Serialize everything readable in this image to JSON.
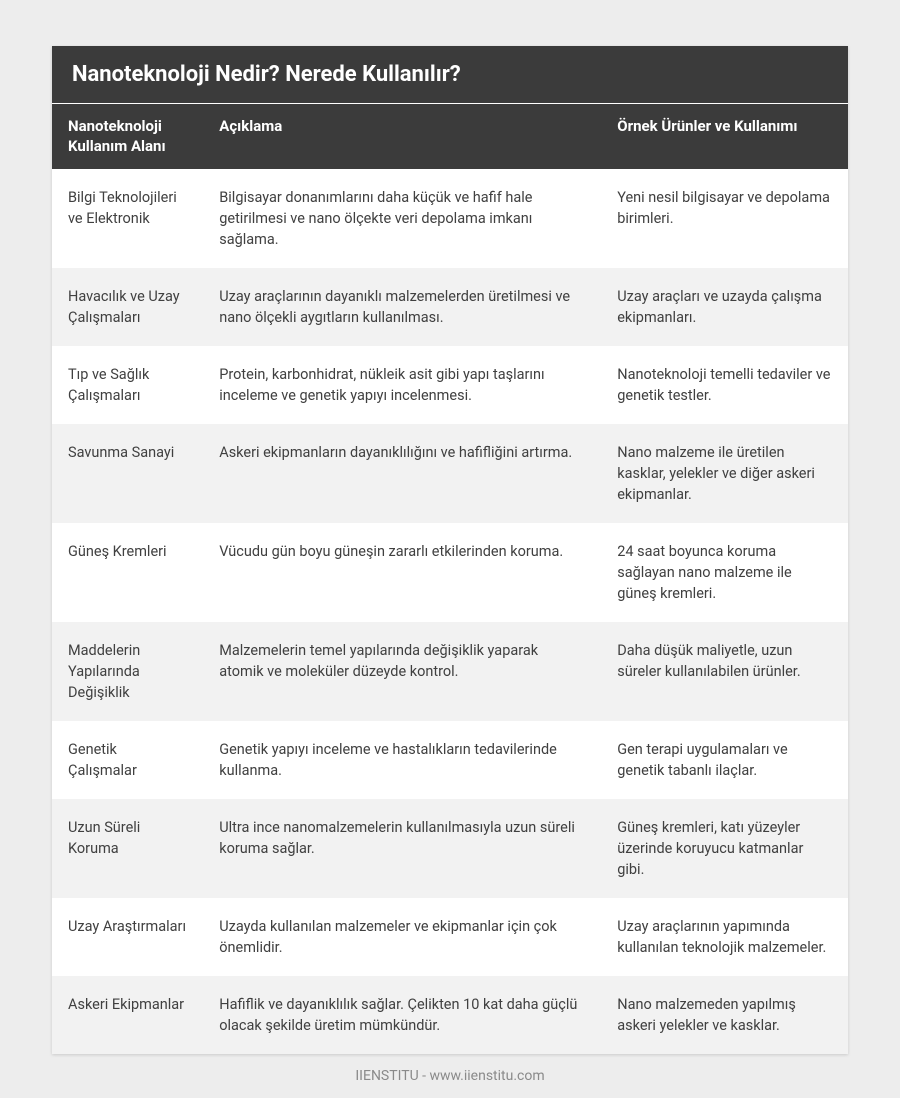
{
  "title": "Nanoteknoloji Nedir? Nerede Kullanılır?",
  "columns": [
    "Nanoteknoloji Kullanım Alanı",
    "Açıklama",
    "Örnek Ürünler ve Kullanımı"
  ],
  "rows": [
    {
      "area": "Bilgi Teknolojileri ve Elektronik",
      "desc": "Bilgisayar donanımlarını daha küçük ve hafif hale getirilmesi ve nano ölçekte veri depolama imkanı sağlama.",
      "example": "Yeni nesil bilgisayar ve depolama birimleri."
    },
    {
      "area": "Havacılık ve Uzay Çalışmaları",
      "desc": "Uzay araçlarının dayanıklı malzemelerden üretilmesi ve nano ölçekli aygıtların kullanılması.",
      "example": "Uzay araçları ve uzayda çalışma ekipmanları."
    },
    {
      "area": "Tıp ve Sağlık Çalışmaları",
      "desc": "Protein, karbonhidrat, nükleik asit gibi yapı taşlarını inceleme ve genetik yapıyı incelenmesi.",
      "example": "Nanoteknoloji temelli tedaviler ve genetik testler."
    },
    {
      "area": "Savunma Sanayi",
      "desc": "Askeri ekipmanların dayanıklılığını ve hafifliğini artırma.",
      "example": "Nano malzeme ile üretilen kasklar, yelekler ve diğer askeri ekipmanlar."
    },
    {
      "area": "Güneş Kremleri",
      "desc": "Vücudu gün boyu güneşin zararlı etkilerinden koruma.",
      "example": "24 saat boyunca koruma sağlayan nano malzeme ile güneş kremleri."
    },
    {
      "area": "Maddelerin Yapılarında Değişiklik",
      "desc": "Malzemelerin temel yapılarında değişiklik yaparak atomik ve moleküler düzeyde kontrol.",
      "example": "Daha düşük maliyetle, uzun süreler kullanılabilen ürünler."
    },
    {
      "area": "Genetik Çalışmalar",
      "desc": "Genetik yapıyı inceleme ve hastalıkların tedavilerinde kullanma.",
      "example": "Gen terapi uygulamaları ve genetik tabanlı ilaçlar."
    },
    {
      "area": "Uzun Süreli Koruma",
      "desc": "Ultra ince nanomalzemelerin kullanılmasıyla uzun süreli koruma sağlar.",
      "example": "Güneş kremleri, katı yüzeyler üzerinde koruyucu katmanlar gibi."
    },
    {
      "area": "Uzay Araştırmaları",
      "desc": "Uzayda kullanılan malzemeler ve ekipmanlar için çok önemlidir.",
      "example": "Uzay araçlarının yapımında kullanılan teknolojik malzemeler."
    },
    {
      "area": "Askeri Ekipmanlar",
      "desc": "Hafiflik ve dayanıklılık sağlar. Çelikten 10 kat daha güçlü olacak şekilde üretim mümkündür.",
      "example": "Nano malzemeden yapılmış askeri yelekler ve kasklar."
    }
  ],
  "footer": "IIENSTITU - www.iienstitu.com",
  "styling": {
    "page_bg": "#ededed",
    "card_bg": "#ffffff",
    "header_bg": "#3b3b3b",
    "header_text": "#ffffff",
    "row_odd_bg": "#ffffff",
    "row_even_bg": "#f2f2f2",
    "body_text": "#404040",
    "footer_text": "#8a8a8a",
    "title_fontsize": 22,
    "header_fontsize": 15,
    "cell_fontsize": 14.5,
    "col_widths_pct": [
      19,
      50,
      31
    ]
  }
}
